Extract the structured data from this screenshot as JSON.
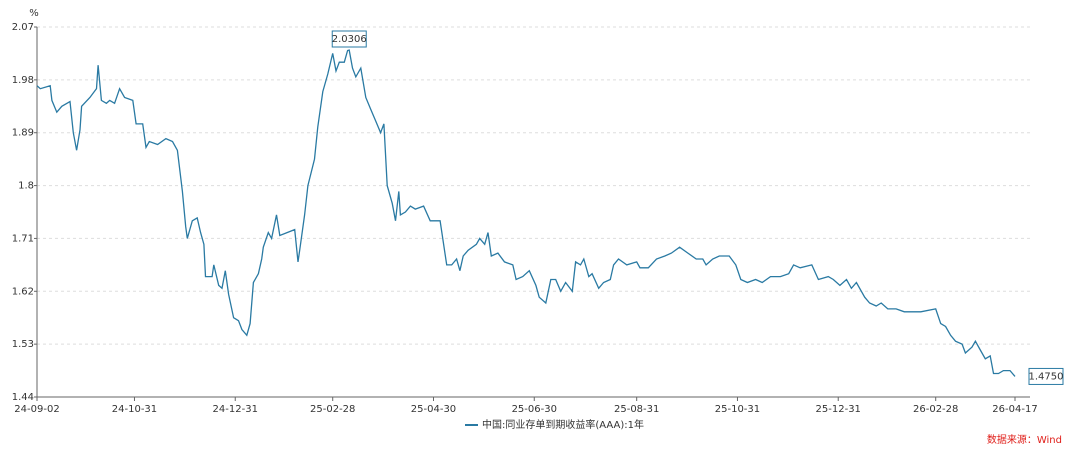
{
  "chart_data": {
    "type": "line",
    "y_unit": "%",
    "x": [
      "24-09-02",
      "24-09-04",
      "24-09-10",
      "24-09-11",
      "24-09-14",
      "24-09-17",
      "24-09-22",
      "24-09-24",
      "24-09-26",
      "24-09-28",
      "24-09-29",
      "24-10-04",
      "24-10-08",
      "24-10-09",
      "24-10-11",
      "24-10-14",
      "24-10-16",
      "24-10-19",
      "24-10-22",
      "24-10-25",
      "24-10-30",
      "24-11-01",
      "24-11-05",
      "24-11-07",
      "24-11-09",
      "24-11-14",
      "24-11-19",
      "24-11-23",
      "24-11-26",
      "24-11-29",
      "24-12-01",
      "24-12-02",
      "24-12-05",
      "24-12-08",
      "24-12-10",
      "24-12-12",
      "24-12-13",
      "24-12-17",
      "24-12-18",
      "24-12-21",
      "24-12-23",
      "24-12-25",
      "24-12-27",
      "24-12-30",
      "25-01-02",
      "25-01-04",
      "25-01-07",
      "25-01-09",
      "25-01-11",
      "25-01-14",
      "25-01-16",
      "25-01-17",
      "25-01-20",
      "25-01-22",
      "25-01-25",
      "25-01-27",
      "25-02-05",
      "25-02-07",
      "25-02-08",
      "25-02-11",
      "25-02-13",
      "25-02-17",
      "25-02-19",
      "25-02-22",
      "25-02-25",
      "25-02-28",
      "25-03-02",
      "25-03-04",
      "25-03-07",
      "25-03-09",
      "25-03-10",
      "25-03-12",
      "25-03-14",
      "25-03-17",
      "25-03-20",
      "25-03-23",
      "25-03-26",
      "25-03-29",
      "25-03-31",
      "25-04-02",
      "25-04-05",
      "25-04-07",
      "25-04-09",
      "25-04-10",
      "25-04-13",
      "25-04-16",
      "25-04-19",
      "25-04-24",
      "25-04-28",
      "25-05-04",
      "25-05-08",
      "25-05-11",
      "25-05-14",
      "25-05-16",
      "25-05-18",
      "25-05-21",
      "25-05-26",
      "25-05-28",
      "25-05-31",
      "25-06-02",
      "25-06-04",
      "25-06-08",
      "25-06-12",
      "25-06-17",
      "25-06-19",
      "25-06-23",
      "25-06-27",
      "25-07-01",
      "25-07-03",
      "25-07-07",
      "25-07-10",
      "25-07-13",
      "25-07-16",
      "25-07-19",
      "25-07-23",
      "25-07-25",
      "25-07-28",
      "25-07-30",
      "25-08-02",
      "25-08-04",
      "25-08-08",
      "25-08-11",
      "25-08-15",
      "25-08-17",
      "25-08-20",
      "25-08-25",
      "25-08-31",
      "25-09-02",
      "25-09-07",
      "25-09-12",
      "25-09-17",
      "25-09-21",
      "25-09-26",
      "25-10-01",
      "25-10-06",
      "25-10-10",
      "25-10-12",
      "25-10-16",
      "25-10-20",
      "25-10-26",
      "25-10-30",
      "25-11-02",
      "25-11-06",
      "25-11-11",
      "25-11-15",
      "25-11-20",
      "25-11-26",
      "25-12-01",
      "25-12-04",
      "25-12-08",
      "25-12-15",
      "25-12-19",
      "25-12-25",
      "25-12-28",
      "26-01-01",
      "26-01-05",
      "26-01-08",
      "26-01-11",
      "26-01-16",
      "26-01-19",
      "26-01-23",
      "26-01-26",
      "26-01-30",
      "26-02-04",
      "26-02-09",
      "26-02-19",
      "26-02-28",
      "26-03-03",
      "26-03-06",
      "26-03-09",
      "26-03-12",
      "26-03-16",
      "26-03-18",
      "26-03-22",
      "26-03-24",
      "26-03-27",
      "26-03-30",
      "26-04-02",
      "26-04-04",
      "26-04-07",
      "26-04-10",
      "26-04-14",
      "26-04-17"
    ],
    "series": [
      {
        "name": "中国:同业存单到期收益率(AAA):1年",
        "color": "#2a7aa3",
        "values": [
          1.97,
          1.965,
          1.97,
          1.945,
          1.925,
          1.935,
          1.943,
          1.89,
          1.86,
          1.895,
          1.935,
          1.95,
          1.965,
          2.005,
          1.945,
          1.94,
          1.945,
          1.94,
          1.965,
          1.95,
          1.945,
          1.905,
          1.905,
          1.865,
          1.875,
          1.87,
          1.88,
          1.875,
          1.86,
          1.79,
          1.73,
          1.71,
          1.74,
          1.745,
          1.72,
          1.7,
          1.645,
          1.645,
          1.665,
          1.63,
          1.625,
          1.655,
          1.615,
          1.575,
          1.57,
          1.555,
          1.545,
          1.565,
          1.635,
          1.65,
          1.675,
          1.695,
          1.72,
          1.71,
          1.75,
          1.715,
          1.725,
          1.67,
          1.69,
          1.75,
          1.8,
          1.845,
          1.9,
          1.96,
          1.99,
          2.025,
          1.995,
          2.01,
          2.01,
          2.03,
          2.0306,
          2.0,
          1.985,
          2.0,
          1.95,
          1.93,
          1.91,
          1.89,
          1.905,
          1.8,
          1.77,
          1.74,
          1.79,
          1.75,
          1.755,
          1.765,
          1.76,
          1.765,
          1.74,
          1.74,
          1.665,
          1.665,
          1.675,
          1.655,
          1.68,
          1.69,
          1.7,
          1.71,
          1.7,
          1.72,
          1.68,
          1.685,
          1.67,
          1.665,
          1.64,
          1.645,
          1.655,
          1.63,
          1.61,
          1.6,
          1.64,
          1.64,
          1.62,
          1.635,
          1.62,
          1.67,
          1.665,
          1.675,
          1.645,
          1.65,
          1.625,
          1.635,
          1.64,
          1.665,
          1.675,
          1.665,
          1.67,
          1.66,
          1.66,
          1.675,
          1.68,
          1.685,
          1.695,
          1.685,
          1.675,
          1.675,
          1.665,
          1.675,
          1.68,
          1.68,
          1.665,
          1.64,
          1.635,
          1.64,
          1.635,
          1.645,
          1.645,
          1.65,
          1.665,
          1.66,
          1.665,
          1.64,
          1.645,
          1.64,
          1.63,
          1.64,
          1.625,
          1.635,
          1.61,
          1.6,
          1.595,
          1.6,
          1.59,
          1.59,
          1.585,
          1.585,
          1.59,
          1.565,
          1.56,
          1.545,
          1.535,
          1.53,
          1.515,
          1.525,
          1.535,
          1.52,
          1.505,
          1.51,
          1.48,
          1.48,
          1.485,
          1.485,
          1.475
        ]
      }
    ],
    "annotations": [
      {
        "x": "25-03-10",
        "y": 2.0306,
        "label": "2.0306"
      },
      {
        "x": "26-04-17",
        "y": 1.475,
        "label": "1.4750"
      }
    ],
    "xlim": [
      "24-09-02",
      "26-04-17"
    ],
    "xticks": [
      "24-09-02",
      "24-10-31",
      "24-12-31",
      "25-02-28",
      "25-04-30",
      "25-06-30",
      "25-08-31",
      "25-10-31",
      "25-12-31",
      "26-02-28",
      "26-04-17"
    ],
    "ylim": [
      1.44,
      2.07
    ],
    "yticks": [
      1.44,
      1.53,
      1.62,
      1.71,
      1.8,
      1.89,
      1.98,
      2.07
    ],
    "grid": true,
    "source": "数据来源：Wind",
    "source_color": "#e0201b"
  }
}
